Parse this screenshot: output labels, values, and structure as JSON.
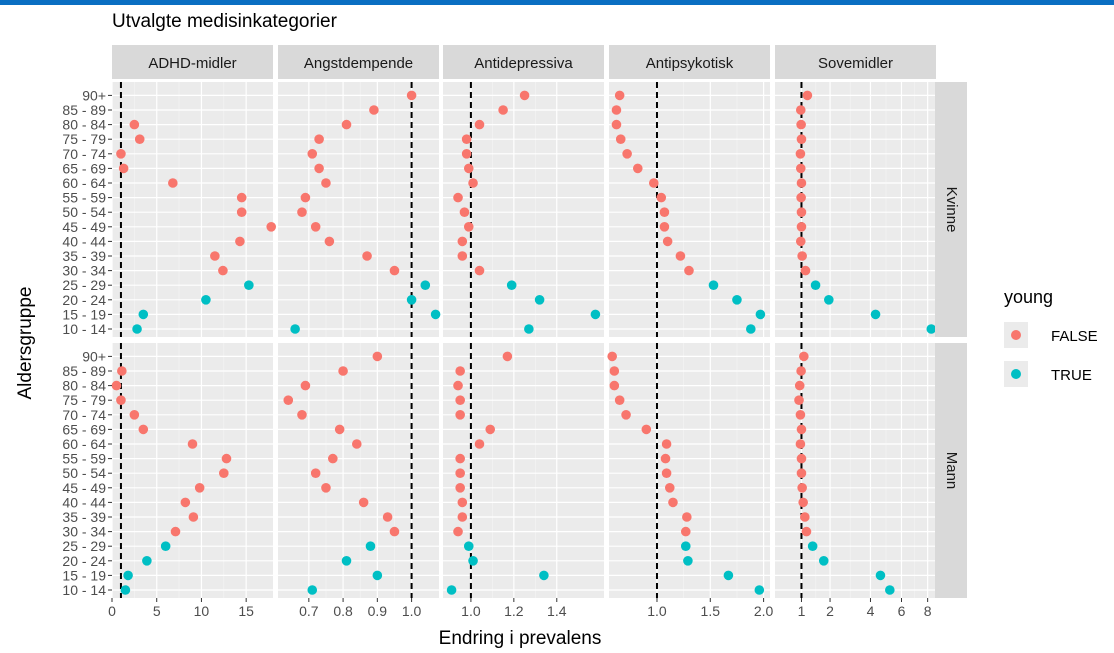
{
  "chart_data": {
    "type": "scatter",
    "title": "Utvalgte medisinkategorier",
    "xlabel": "Endring i prevalens",
    "ylabel": "Aldersgruppe",
    "grid": true,
    "y_categories": [
      "10 - 14",
      "15 - 19",
      "20 - 24",
      "25 - 29",
      "30 - 34",
      "35 - 39",
      "40 - 44",
      "45 - 49",
      "50 - 54",
      "55 - 59",
      "60 - 64",
      "65 - 69",
      "70 - 74",
      "75 - 79",
      "80 - 84",
      "85 - 89",
      "90+"
    ],
    "rows": [
      "Kvinne",
      "Mann"
    ],
    "reference_line": 1,
    "legend": {
      "title": "young",
      "position": "right",
      "entries": [
        {
          "label": "FALSE",
          "color": "#F8766D"
        },
        {
          "label": "TRUE",
          "color": "#00BFC4"
        }
      ]
    },
    "colors": {
      "young_false": "#F8766D",
      "young_true": "#00BFC4"
    },
    "panels": [
      {
        "name": "ADHD-midler",
        "scale": "linear",
        "xlim": [
          0,
          18
        ],
        "ticks": [
          {
            "v": 0,
            "label": "0"
          },
          {
            "v": 5,
            "label": "5"
          },
          {
            "v": 10,
            "label": "10"
          },
          {
            "v": 15,
            "label": "15"
          }
        ],
        "series": {
          "Kvinne": {
            "false": [
              null,
              null,
              null,
              null,
              12.4,
              11.5,
              14.3,
              17.8,
              14.5,
              14.5,
              6.8,
              1.3,
              1.0,
              3.1,
              2.5,
              null,
              null
            ],
            "true": [
              2.8,
              3.5,
              10.5,
              15.3,
              null,
              null,
              null,
              null,
              null,
              null,
              null,
              null,
              null,
              null,
              null,
              null,
              null
            ]
          },
          "Mann": {
            "false": [
              null,
              null,
              null,
              null,
              7.1,
              9.1,
              8.2,
              9.8,
              12.5,
              12.8,
              9.0,
              3.5,
              2.5,
              1.0,
              0.5,
              1.1,
              null
            ],
            "true": [
              1.5,
              1.8,
              3.9,
              6.0,
              null,
              null,
              null,
              null,
              null,
              null,
              null,
              null,
              null,
              null,
              null,
              null,
              null
            ]
          }
        }
      },
      {
        "name": "Angstdempende",
        "scale": "linear",
        "xlim": [
          0.61,
          1.08
        ],
        "ticks": [
          {
            "v": 0.7,
            "label": "0.7"
          },
          {
            "v": 0.8,
            "label": "0.8"
          },
          {
            "v": 0.9,
            "label": "0.9"
          },
          {
            "v": 1.0,
            "label": "1.0"
          }
        ],
        "series": {
          "Kvinne": {
            "false": [
              null,
              null,
              null,
              null,
              0.95,
              0.87,
              0.76,
              0.72,
              0.68,
              0.69,
              0.75,
              0.73,
              0.71,
              0.73,
              0.81,
              0.89,
              1.0
            ],
            "true": [
              0.66,
              1.07,
              1.0,
              1.04,
              null,
              null,
              null,
              null,
              null,
              null,
              null,
              null,
              null,
              null,
              null,
              null,
              null
            ]
          },
          "Mann": {
            "false": [
              null,
              null,
              null,
              null,
              0.95,
              0.93,
              0.86,
              0.75,
              0.72,
              0.77,
              0.84,
              0.79,
              0.68,
              0.64,
              0.69,
              0.8,
              0.9
            ],
            "true": [
              0.71,
              0.9,
              0.81,
              0.88,
              null,
              null,
              null,
              null,
              null,
              null,
              null,
              null,
              null,
              null,
              null,
              null,
              null
            ]
          }
        }
      },
      {
        "name": "Antidepressiva",
        "scale": "linear",
        "xlim": [
          0.87,
          1.62
        ],
        "ticks": [
          {
            "v": 1.0,
            "label": "1.0"
          },
          {
            "v": 1.2,
            "label": "1.2"
          },
          {
            "v": 1.4,
            "label": "1.4"
          }
        ],
        "series": {
          "Kvinne": {
            "false": [
              null,
              null,
              null,
              null,
              1.04,
              0.96,
              0.96,
              0.99,
              0.97,
              0.94,
              1.01,
              0.99,
              0.98,
              0.98,
              1.04,
              1.15,
              1.25
            ],
            "true": [
              1.27,
              1.58,
              1.32,
              1.19,
              null,
              null,
              null,
              null,
              null,
              null,
              null,
              null,
              null,
              null,
              null,
              null,
              null
            ]
          },
          "Mann": {
            "false": [
              null,
              null,
              null,
              null,
              0.94,
              0.96,
              0.96,
              0.95,
              0.95,
              0.95,
              1.04,
              1.09,
              0.95,
              0.95,
              0.94,
              0.95,
              1.17
            ],
            "true": [
              0.91,
              1.34,
              1.01,
              0.99,
              null,
              null,
              null,
              null,
              null,
              null,
              null,
              null,
              null,
              null,
              null,
              null,
              null
            ]
          }
        }
      },
      {
        "name": "Antipsykotisk",
        "scale": "linear",
        "xlim": [
          0.55,
          2.06
        ],
        "ticks": [
          {
            "v": 1.0,
            "label": "1.0"
          },
          {
            "v": 1.5,
            "label": "1.5"
          },
          {
            "v": 2.0,
            "label": "2.0"
          }
        ],
        "series": {
          "Kvinne": {
            "false": [
              null,
              null,
              null,
              null,
              1.3,
              1.22,
              1.1,
              1.07,
              1.07,
              1.04,
              0.97,
              0.82,
              0.72,
              0.66,
              0.62,
              0.62,
              0.65
            ],
            "true": [
              1.88,
              1.97,
              1.75,
              1.53,
              null,
              null,
              null,
              null,
              null,
              null,
              null,
              null,
              null,
              null,
              null,
              null,
              null
            ]
          },
          "Mann": {
            "false": [
              null,
              null,
              null,
              null,
              1.27,
              1.28,
              1.15,
              1.12,
              1.09,
              1.08,
              1.09,
              0.9,
              0.71,
              0.65,
              0.6,
              0.6,
              0.58
            ],
            "true": [
              1.96,
              1.67,
              1.29,
              1.27,
              null,
              null,
              null,
              null,
              null,
              null,
              null,
              null,
              null,
              null,
              null,
              null,
              null
            ]
          }
        }
      },
      {
        "name": "Sovemidler",
        "scale": "sqrt",
        "xlim": [
          0.38,
          8.7
        ],
        "ticks": [
          {
            "v": 1,
            "label": "1"
          },
          {
            "v": 2,
            "label": "2"
          },
          {
            "v": 4,
            "label": "4"
          },
          {
            "v": 6,
            "label": "6"
          },
          {
            "v": 8,
            "label": "8"
          }
        ],
        "series": {
          "Kvinne": {
            "false": [
              null,
              null,
              null,
              null,
              1.12,
              1.02,
              0.98,
              1.0,
              1.0,
              0.99,
              1.0,
              0.98,
              0.97,
              1.0,
              0.99,
              0.98,
              1.18
            ],
            "true": [
              8.3,
              4.3,
              1.95,
              1.45,
              null,
              null,
              null,
              null,
              null,
              null,
              null,
              null,
              null,
              null,
              null,
              null,
              null
            ]
          },
          "Mann": {
            "false": [
              null,
              null,
              null,
              null,
              1.15,
              1.1,
              1.05,
              1.02,
              1.0,
              1.0,
              0.97,
              1.0,
              0.97,
              0.93,
              0.95,
              0.99,
              1.07
            ],
            "true": [
              5.2,
              4.6,
              1.75,
              1.35,
              null,
              null,
              null,
              null,
              null,
              null,
              null,
              null,
              null,
              null,
              null,
              null,
              null
            ]
          }
        }
      }
    ]
  }
}
